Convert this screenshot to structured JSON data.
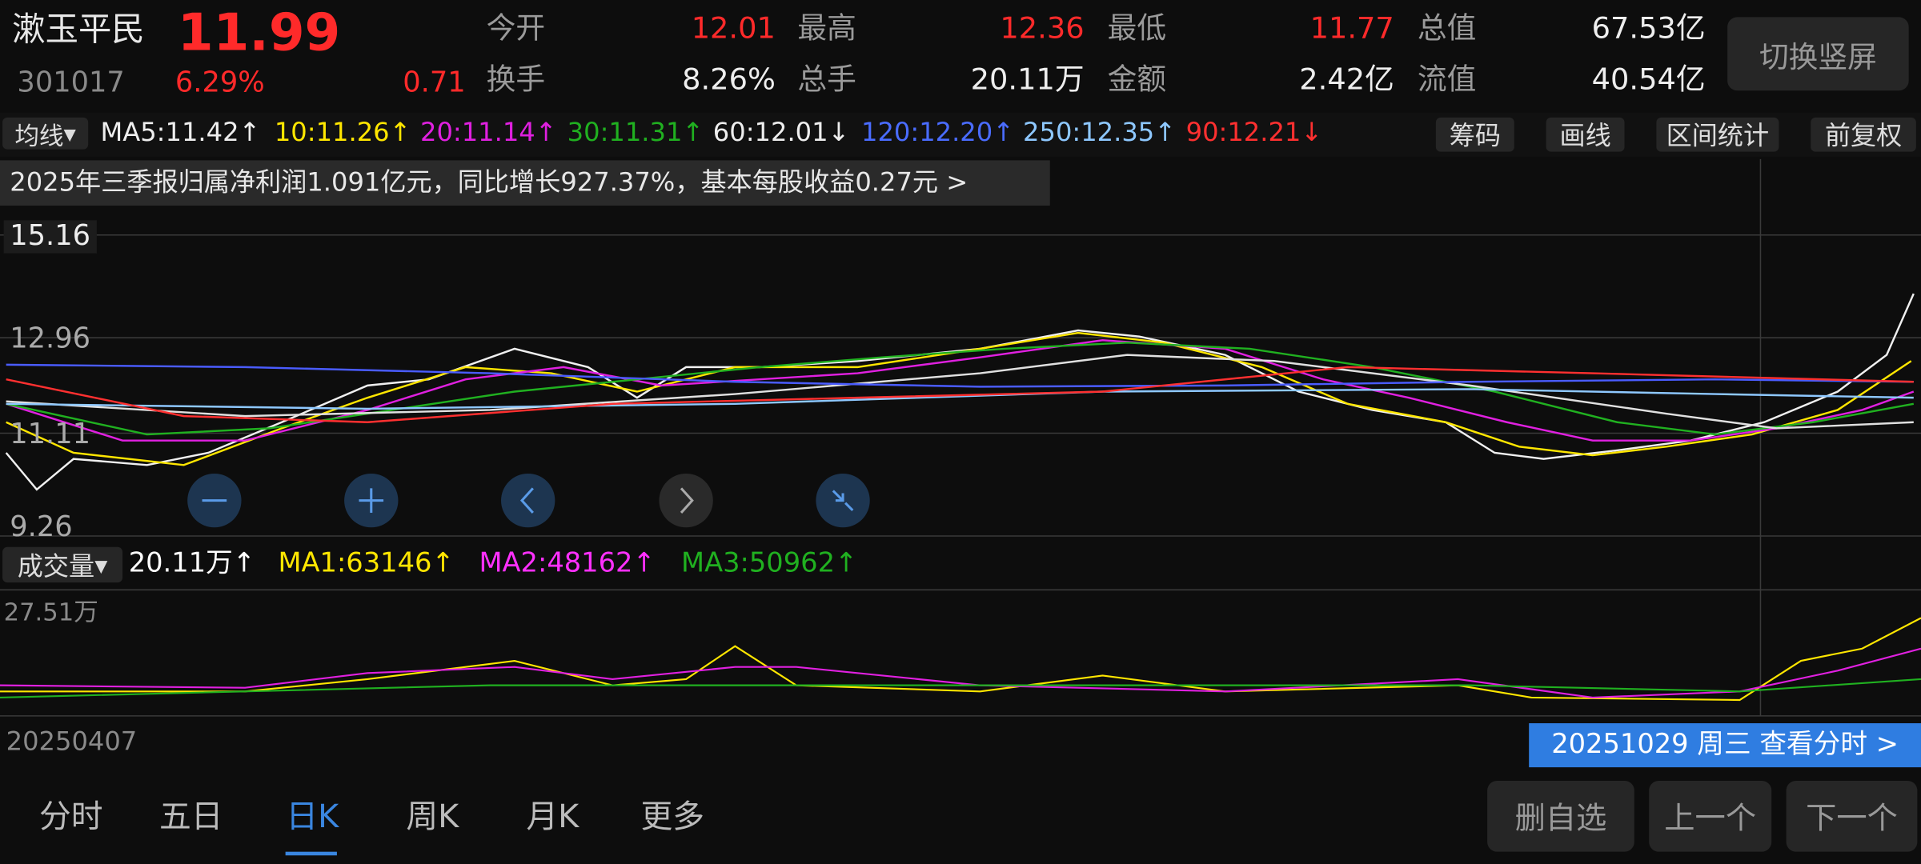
{
  "header": {
    "name": "漱玉平民",
    "price": "11.99",
    "code": "301017",
    "change_pct": "6.29%",
    "change": "0.71",
    "stats": [
      {
        "label": "今开",
        "value": "12.01"
      },
      {
        "label": "最高",
        "value": "12.36"
      },
      {
        "label": "最低",
        "value": "11.77"
      },
      {
        "label": "总值",
        "value": "67.53亿"
      },
      {
        "label": "换手",
        "value": "8.26%"
      },
      {
        "label": "总手",
        "value": "20.11万"
      },
      {
        "label": "金额",
        "value": "2.42亿"
      },
      {
        "label": "流值",
        "value": "40.54亿"
      }
    ]
  },
  "switch_button": "切换竖屏",
  "ma_bar": {
    "selector": "均线",
    "items": [
      "MA5:11.42↑",
      "10:11.26↑",
      "20:11.14↑",
      "30:11.31↑",
      "60:12.01↓",
      "120:12.20↑",
      "250:12.35↑",
      "90:12.21↓"
    ],
    "buttons": [
      "筹码",
      "画线",
      "区间统计",
      "前复权"
    ]
  },
  "banner": "2025年三季报归属净利润1.091亿元，同比增长927.37%，基本每股收益0.27元 >",
  "price_axis": [
    "15.16",
    "12.96",
    "11.11",
    "9.26"
  ],
  "volume": {
    "selector": "成交量",
    "items": [
      "20.11万↑",
      "MA1:63146↑",
      "MA2:48162↑",
      "MA3:50962↑"
    ],
    "axis_label": "27.51万"
  },
  "start_date": "20250407",
  "cursor_info": "20251029 周三 查看分时 >",
  "tabs": [
    "分时",
    "五日",
    "日K",
    "周K",
    "月K",
    "更多"
  ],
  "actions": [
    "删自选",
    "上一个",
    "下一个"
  ]
}
